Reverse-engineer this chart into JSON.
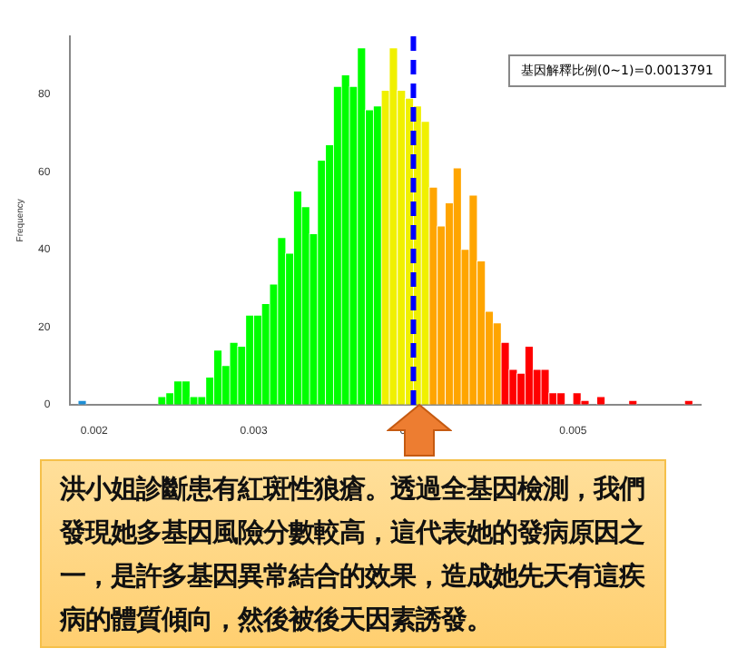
{
  "chart_data": {
    "type": "histogram",
    "ylabel": "Frequency",
    "bins": [
      0.0019,
      0.00195,
      0.002,
      0.00205,
      0.0021,
      0.00215,
      0.0022,
      0.00225,
      0.0023,
      0.00235,
      0.0024,
      0.00245,
      0.0025,
      0.00255,
      0.0026,
      0.00265,
      0.0027,
      0.00275,
      0.0028,
      0.00285,
      0.0029,
      0.00295,
      0.003,
      0.00305,
      0.0031,
      0.00315,
      0.0032,
      0.00325,
      0.0033,
      0.00335,
      0.0034,
      0.00345,
      0.0035,
      0.00355,
      0.0036,
      0.00365,
      0.0037,
      0.00375,
      0.0038,
      0.00385,
      0.0039,
      0.00395,
      0.004,
      0.00405,
      0.0041,
      0.00415,
      0.0042,
      0.00425,
      0.0043,
      0.00435,
      0.0044,
      0.00445,
      0.0045,
      0.00455,
      0.0046,
      0.00465,
      0.0047,
      0.00475,
      0.0048,
      0.00485,
      0.0049,
      0.00495,
      0.005,
      0.00505,
      0.0051,
      0.00515,
      0.0052,
      0.00525,
      0.0053,
      0.00535,
      0.0054,
      0.00545,
      0.0055,
      0.00555,
      0.0056,
      0.00565,
      0.0057,
      0.00575
    ],
    "values": [
      1,
      0,
      0,
      0,
      0,
      0,
      0,
      0,
      0,
      0,
      2,
      3,
      6,
      6,
      2,
      2,
      7,
      14,
      10,
      16,
      15,
      23,
      23,
      26,
      31,
      43,
      39,
      55,
      51,
      44,
      63,
      67,
      82,
      85,
      82,
      92,
      76,
      77,
      81,
      92,
      81,
      79,
      77,
      73,
      56,
      46,
      52,
      61,
      40,
      54,
      37,
      24,
      21,
      16,
      9,
      8,
      15,
      9,
      9,
      3,
      3,
      0,
      3,
      1,
      0,
      2,
      0,
      0,
      0,
      1,
      0,
      0,
      0,
      0,
      0,
      0,
      1
    ],
    "colors": [
      "#1e8fd6",
      "#1e8fd6",
      "#1e8fd6",
      "#1e8fd6",
      "#1e8fd6",
      "#1e8fd6",
      "#1e8fd6",
      "#1e8fd6",
      "#1e8fd6",
      "#1e8fd6",
      "#00ff00",
      "#00ff00",
      "#00ff00",
      "#00ff00",
      "#00ff00",
      "#00ff00",
      "#00ff00",
      "#00ff00",
      "#00ff00",
      "#00ff00",
      "#00ff00",
      "#00ff00",
      "#00ff00",
      "#00ff00",
      "#00ff00",
      "#00ff00",
      "#00ff00",
      "#00ff00",
      "#00ff00",
      "#00ff00",
      "#00ff00",
      "#00ff00",
      "#00ff00",
      "#00ff00",
      "#00ff00",
      "#00ff00",
      "#00ff00",
      "#00ff00",
      "#f0f000",
      "#f0f000",
      "#f0f000",
      "#f0f000",
      "#f0f000",
      "#f0f000",
      "#ffa500",
      "#ffa500",
      "#ffa500",
      "#ffa500",
      "#ffa500",
      "#ffa500",
      "#ffa500",
      "#ffa500",
      "#ffa500",
      "#ff0000",
      "#ff0000",
      "#ff0000",
      "#ff0000",
      "#ff0000",
      "#ff0000",
      "#ff0000",
      "#ff0000",
      "#ff0000",
      "#ff0000",
      "#ff0000",
      "#ff0000",
      "#ff0000",
      "#ff0000",
      "#ff0000",
      "#ff0000",
      "#ff0000",
      "#ff0000",
      "#ff0000",
      "#ff0000",
      "#ff0000",
      "#ff0000",
      "#ff0000",
      "#ff0000"
    ],
    "xlim": [
      0.00185,
      0.0058
    ],
    "xticks": [
      0.002,
      0.003,
      0.004,
      0.005
    ],
    "ylim": [
      0,
      95
    ],
    "yticks": [
      0,
      20,
      40,
      60,
      80
    ],
    "ref_lines": [
      {
        "axis": "x",
        "value": 0.004,
        "color": "#0000ff",
        "line_style": "dashed"
      }
    ],
    "annotations": [
      "基因解釋比例(0~1)=0.0013791",
      "洪小姐診斷患有紅斑性狼瘡。透過全基因檢測，我們發現她多基因風險分數較高，這代表她的發病原因之一，是許多基因異常結合的效果，造成她先天有這疾病的體質傾向，然後被後天因素誘發。"
    ],
    "grid": false,
    "legend": false
  }
}
